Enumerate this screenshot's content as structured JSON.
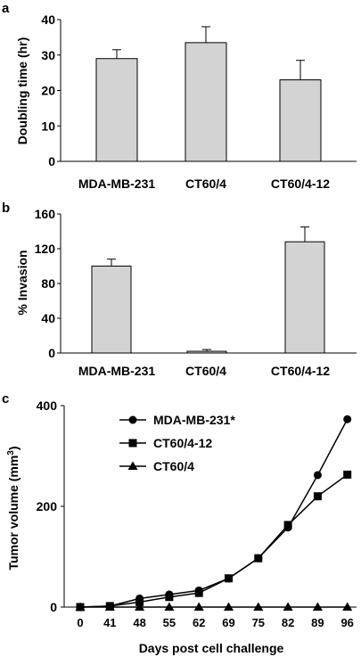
{
  "chart_data": [
    {
      "panel_label": "a",
      "type": "bar",
      "categories": [
        "MDA-MB-231",
        "CT60/4",
        "CT60/4-12"
      ],
      "values": [
        29,
        33.5,
        23
      ],
      "errors": [
        2.5,
        4.5,
        5.5
      ],
      "ylabel": "Doubling time (hr)",
      "ylim": [
        0,
        40
      ],
      "yticks": [
        "0",
        "10",
        "20",
        "30",
        "40"
      ],
      "bar_color": "#d3d3d3"
    },
    {
      "panel_label": "b",
      "type": "bar",
      "categories": [
        "MDA-MB-231",
        "CT60/4",
        "CT60/4-12"
      ],
      "values": [
        100,
        2,
        128
      ],
      "errors": [
        8,
        2,
        17
      ],
      "ylabel": "% Invasion",
      "ylim": [
        0,
        160
      ],
      "yticks": [
        "0",
        "40",
        "80",
        "120",
        "160"
      ],
      "bar_color": "#d3d3d3"
    },
    {
      "panel_label": "c",
      "type": "line",
      "x": [
        "0",
        "41",
        "48",
        "55",
        "62",
        "69",
        "75",
        "82",
        "89",
        "96"
      ],
      "xlabel": "Days post cell challenge",
      "ylabel": "Tumor volume (mm3)",
      "ylabel_main": "Tumor volume (mm",
      "ylabel_sup": "3",
      "ylabel_close": ")",
      "ylim": [
        0,
        400
      ],
      "yticks": [
        "0",
        "200",
        "400"
      ],
      "legend_position": "top-left",
      "series": [
        {
          "name": "MDA-MB-231*",
          "marker": "circle",
          "values": [
            0,
            2,
            17,
            25,
            33,
            57,
            97,
            158,
            262,
            373
          ]
        },
        {
          "name": "CT60/4-12",
          "marker": "square",
          "values": [
            0,
            2,
            10,
            20,
            28,
            57,
            97,
            163,
            220,
            263
          ]
        },
        {
          "name": "CT60/4",
          "marker": "triangle",
          "values": [
            0,
            0,
            0,
            0,
            0,
            0,
            0,
            0,
            0,
            0
          ]
        }
      ]
    }
  ]
}
